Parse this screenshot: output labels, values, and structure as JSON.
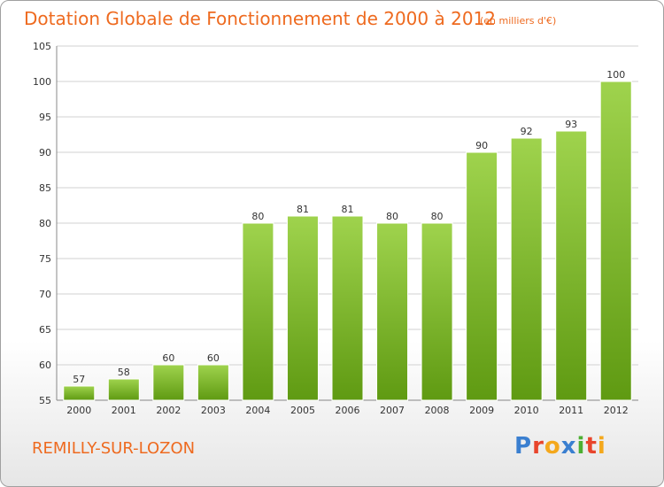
{
  "header": {
    "title": "Dotation Globale de Fonctionnement de 2000 à 2012",
    "unit": "(en milliers d'€)"
  },
  "footer": {
    "commune": "REMILLY-SUR-LOZON",
    "logo_letters": [
      "P",
      "r",
      "o",
      "x",
      "i",
      "t",
      "i"
    ],
    "logo_colors": [
      "#3a7fd0",
      "#e8452c",
      "#f4a81c",
      "#3a7fd0",
      "#4caf32",
      "#e8452c",
      "#f4a81c"
    ]
  },
  "colors": {
    "bar_light": "#9fd34d",
    "bar_dark": "#5f9a12",
    "grid": "#d2d2d2",
    "axis": "#888888",
    "accent": "#ee6a1f"
  },
  "chart_data": {
    "type": "bar",
    "title": "Dotation Globale de Fonctionnement de 2000 à 2012",
    "categories": [
      "2000",
      "2001",
      "2002",
      "2003",
      "2004",
      "2005",
      "2006",
      "2007",
      "2008",
      "2009",
      "2010",
      "2011",
      "2012"
    ],
    "values": [
      57,
      58,
      60,
      60,
      80,
      81,
      81,
      80,
      80,
      90,
      92,
      93,
      100
    ],
    "ylim": [
      55,
      105
    ],
    "yticks": [
      55,
      60,
      65,
      70,
      75,
      80,
      85,
      90,
      95,
      100,
      105
    ],
    "grid": true,
    "legend": "none"
  }
}
